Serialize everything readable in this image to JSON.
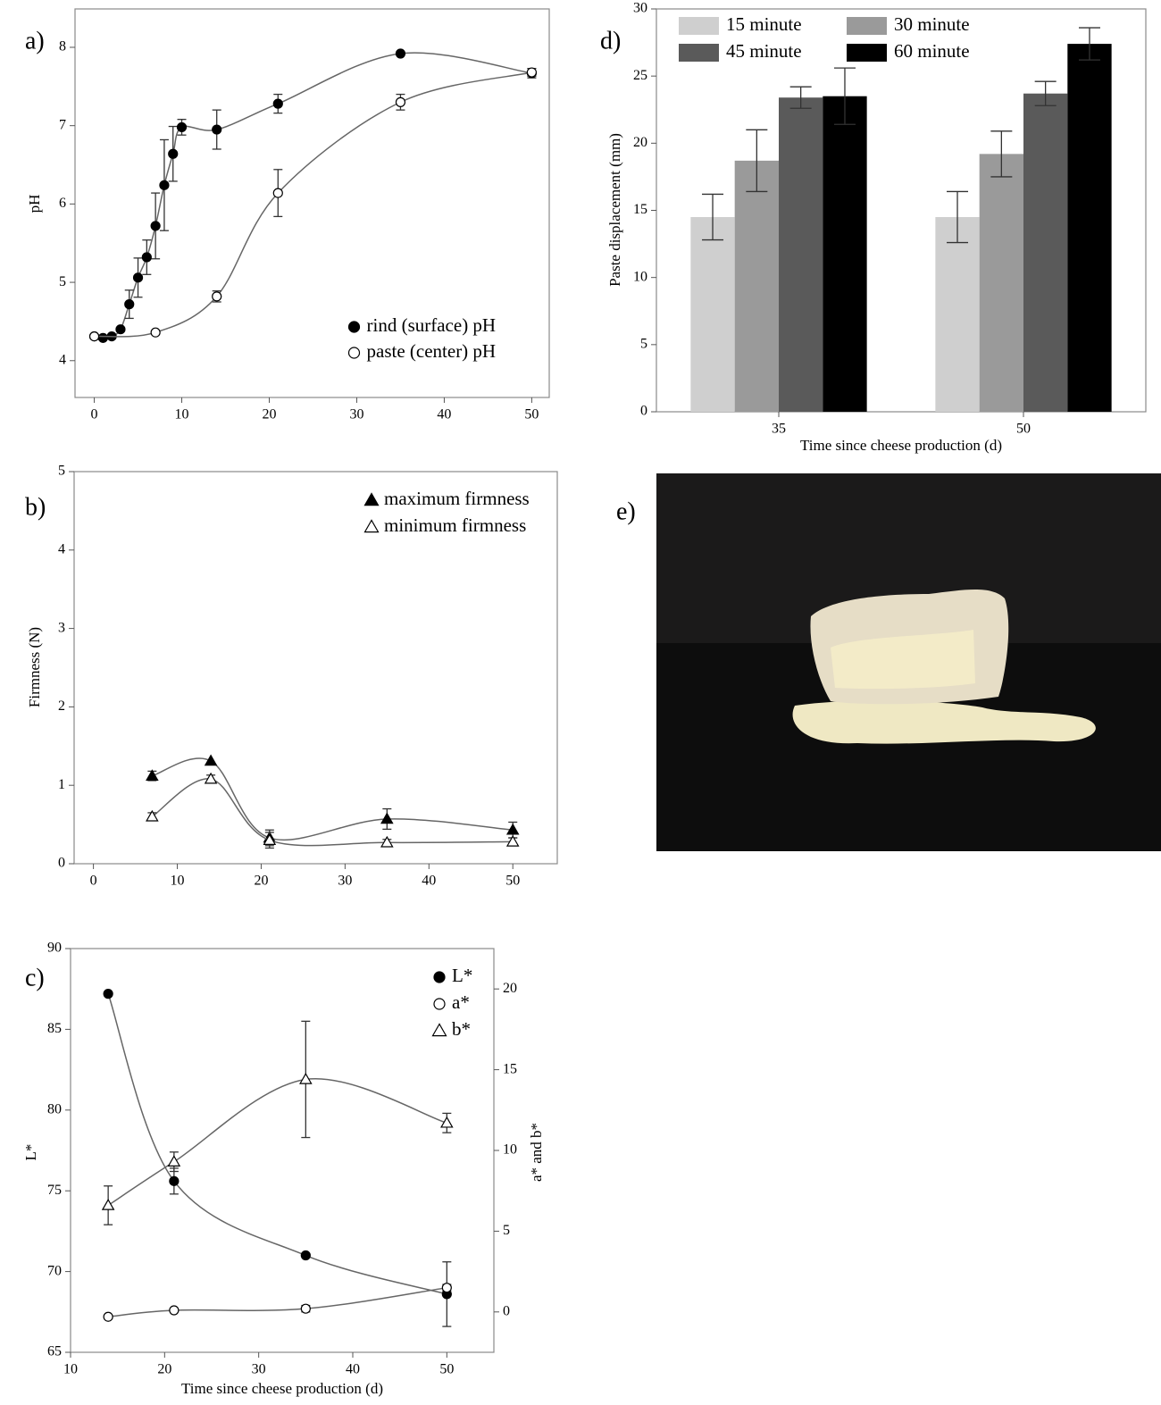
{
  "chart_data": [
    {
      "type": "scatter",
      "label": "a)",
      "ylabel": "pH",
      "xlim": [
        -2.2,
        52
      ],
      "ylim": [
        3.53,
        8.49
      ],
      "xticks": [
        0,
        10,
        20,
        30,
        40,
        50
      ],
      "yticks": [
        4,
        5,
        6,
        7,
        8
      ],
      "legend": "lower right",
      "series": [
        {
          "name": "rind (surface) pH",
          "marker": "filled-circle",
          "color": "#000000",
          "x": [
            0,
            1,
            2,
            3,
            4,
            5,
            6,
            7,
            8,
            9,
            10,
            14,
            21,
            35,
            50
          ],
          "values": [
            4.31,
            4.29,
            4.31,
            4.4,
            4.72,
            5.06,
            5.32,
            5.72,
            6.24,
            6.64,
            6.98,
            6.95,
            7.28,
            7.92,
            7.67
          ],
          "errors": [
            0,
            0,
            0,
            0,
            0.18,
            0.25,
            0.22,
            0.42,
            0.58,
            0.35,
            0.1,
            0.25,
            0.12,
            0,
            0.06
          ]
        },
        {
          "name": "paste (center) pH",
          "marker": "open-circle",
          "color": "#000000",
          "x": [
            0,
            7,
            14,
            21,
            35,
            50
          ],
          "values": [
            4.31,
            4.36,
            4.82,
            6.14,
            7.3,
            7.68
          ],
          "errors": [
            0,
            0,
            0.07,
            0.3,
            0.1,
            0.05
          ]
        }
      ]
    },
    {
      "type": "scatter",
      "label": "b)",
      "ylabel": "Firmness (N)",
      "xlim": [
        -2.3,
        55.3
      ],
      "ylim": [
        0,
        5
      ],
      "xticks": [
        0,
        10,
        20,
        30,
        40,
        50
      ],
      "yticks": [
        0,
        1,
        2,
        3,
        4,
        5
      ],
      "legend": "upper right",
      "series": [
        {
          "name": "maximum firmness",
          "marker": "filled-triangle",
          "color": "#000000",
          "x": [
            7,
            14,
            21,
            35,
            50
          ],
          "values": [
            1.12,
            1.31,
            0.33,
            0.57,
            0.43
          ],
          "errors": [
            0.06,
            0,
            0.1,
            0.13,
            0.1
          ]
        },
        {
          "name": "minimum firmness",
          "marker": "open-triangle",
          "color": "#000000",
          "x": [
            7,
            14,
            21,
            35,
            50
          ],
          "values": [
            0.6,
            1.08,
            0.3,
            0.27,
            0.28
          ],
          "errors": [
            0.05,
            0.05,
            0.1,
            0.04,
            0.05
          ]
        }
      ]
    },
    {
      "type": "scatter",
      "label": "c)",
      "ylabel": "L*",
      "y2label": "a* and b*",
      "xlabel": "Time since cheese production (d)",
      "xlim": [
        10,
        55
      ],
      "ylim": [
        65,
        90
      ],
      "y2lim": [
        -2.5,
        22.5
      ],
      "xticks": [
        10,
        20,
        30,
        40,
        50
      ],
      "yticks": [
        65,
        70,
        75,
        80,
        85,
        90
      ],
      "y2ticks": [
        0,
        5,
        10,
        15,
        20
      ],
      "legend": "upper right",
      "series": [
        {
          "name": "L*",
          "marker": "filled-circle",
          "color": "#000000",
          "x": [
            14,
            21,
            35,
            50
          ],
          "values": [
            87.2,
            75.6,
            71.0,
            68.6
          ],
          "errors": [
            0,
            0.8,
            0,
            2.0
          ]
        },
        {
          "name": "a*",
          "marker": "open-circle",
          "color": "#000000",
          "axis": "y2",
          "x": [
            14,
            21,
            35,
            50
          ],
          "values": [
            -0.3,
            0.1,
            0.2,
            1.5
          ],
          "errors": [
            0,
            0,
            0.2,
            0.2
          ]
        },
        {
          "name": "b*",
          "marker": "open-triangle",
          "color": "#000000",
          "axis": "y2",
          "x": [
            14,
            21,
            35,
            50
          ],
          "values": [
            6.6,
            9.3,
            14.4,
            11.7
          ],
          "errors": [
            1.2,
            0.6,
            3.6,
            0.6
          ]
        }
      ]
    },
    {
      "type": "bar",
      "label": "d)",
      "ylabel": "Paste displacement (mm)",
      "xlabel": "Time since cheese production (d)",
      "categories": [
        "35",
        "50"
      ],
      "ylim": [
        0,
        30
      ],
      "yticks": [
        0,
        5,
        10,
        15,
        20,
        25,
        30
      ],
      "legend": "upper left",
      "series": [
        {
          "name": "15 minute",
          "color": "#cfcfcf",
          "values": [
            14.5,
            14.5
          ],
          "errors": [
            1.7,
            1.9
          ]
        },
        {
          "name": "30 minute",
          "color": "#9a9a9a",
          "values": [
            18.7,
            19.2
          ],
          "errors": [
            2.3,
            1.7
          ]
        },
        {
          "name": "45 minute",
          "color": "#5a5a5a",
          "values": [
            23.4,
            23.7
          ],
          "errors": [
            0.8,
            0.9
          ]
        },
        {
          "name": "60 minute",
          "color": "#000000",
          "values": [
            23.5,
            27.4
          ],
          "errors": [
            2.1,
            1.2
          ]
        }
      ]
    }
  ],
  "photo_label": "e)"
}
